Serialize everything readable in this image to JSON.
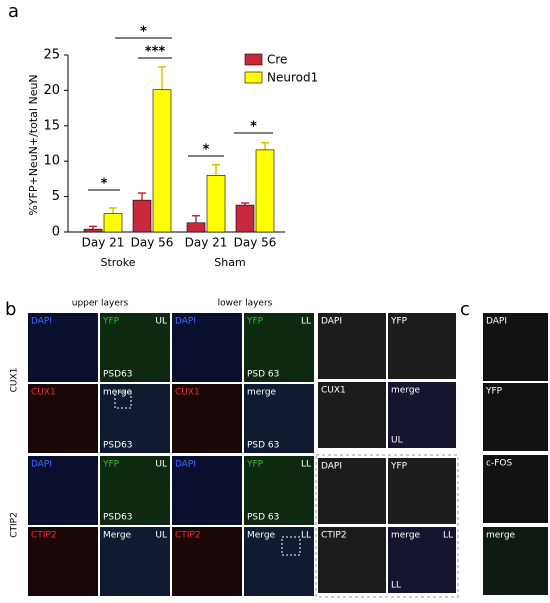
{
  "chart_data": {
    "type": "bar",
    "panel": "a",
    "y_label": "%YFP+NeuN+/total NeuN",
    "categories": [
      "Day 21",
      "Day 56",
      "Day 21",
      "Day 56"
    ],
    "groups": [
      "Stroke",
      "Sham"
    ],
    "series": [
      {
        "name": "Cre",
        "color": "#c8283c",
        "values": [
          0.4,
          4.5,
          1.3,
          3.8
        ],
        "errors": [
          0.4,
          1.0,
          1.0,
          0.3
        ]
      },
      {
        "name": "Neurod1",
        "color": "#ffff00",
        "values": [
          2.6,
          20.1,
          8.0,
          11.6
        ],
        "errors": [
          0.8,
          3.2,
          1.5,
          1.0
        ]
      }
    ],
    "ylim": [
      0,
      25
    ],
    "yticks": [
      0,
      5,
      10,
      15,
      20,
      25
    ],
    "annotations": [
      "*",
      "*",
      "***",
      "*",
      "*"
    ]
  },
  "panel_b": {
    "letter": "b",
    "columns": [
      "upper layers",
      "lower layers"
    ],
    "rows": [
      "CUX1",
      "CTIP2"
    ],
    "tiles": [
      {
        "tl": "DAPI",
        "tl_color": "#3a6cff"
      },
      {
        "tl": "YFP",
        "tl_color": "#2fbf2f",
        "tr": "UL",
        "bl": "PSD63"
      },
      {
        "tl": "DAPI",
        "tl_color": "#3a6cff"
      },
      {
        "tl": "YFP",
        "tl_color": "#2fbf2f",
        "tr": "LL",
        "bl": "PSD 63"
      },
      {
        "tl": "CUX1",
        "tl_color": "#e83030"
      },
      {
        "tl": "merge",
        "tl_color": "#ffffff",
        "bl": "PSD63"
      },
      {
        "tl": "CUX1",
        "tl_color": "#e83030"
      },
      {
        "tl": "merge",
        "tl_color": "#ffffff",
        "bl": "PSD 63"
      },
      {
        "tl": "DAPI",
        "tl_color": "#3a6cff"
      },
      {
        "tl": "YFP",
        "tl_color": "#2fbf2f",
        "tr": "UL",
        "bl": "PSD63"
      },
      {
        "tl": "DAPI",
        "tl_color": "#3a6cff"
      },
      {
        "tl": "YFP",
        "tl_color": "#2fbf2f",
        "tr": "LL",
        "bl": "PSD 63"
      },
      {
        "tl": "CTIP2",
        "tl_color": "#e83030"
      },
      {
        "tl": "Merge",
        "tl_color": "#ffffff",
        "tr": "UL"
      },
      {
        "tl": "CTIP2",
        "tl_color": "#e83030"
      },
      {
        "tl": "Merge",
        "tl_color": "#ffffff",
        "tr": "LL"
      }
    ],
    "zoom_tiles": [
      {
        "tl": "DAPI"
      },
      {
        "tl": "YFP"
      },
      {
        "tl": "CUX1"
      },
      {
        "tl": "merge",
        "bl": "UL"
      },
      {
        "tl": "DAPI"
      },
      {
        "tl": "YFP"
      },
      {
        "tl": "CTIP2"
      },
      {
        "tl": "merge",
        "tr": "LL",
        "bl": "LL"
      }
    ]
  },
  "panel_c": {
    "letter": "c",
    "tiles": [
      {
        "tl": "DAPI"
      },
      {
        "tl": "YFP"
      },
      {
        "tl": "c-FOS"
      },
      {
        "tl": "merge"
      }
    ]
  }
}
